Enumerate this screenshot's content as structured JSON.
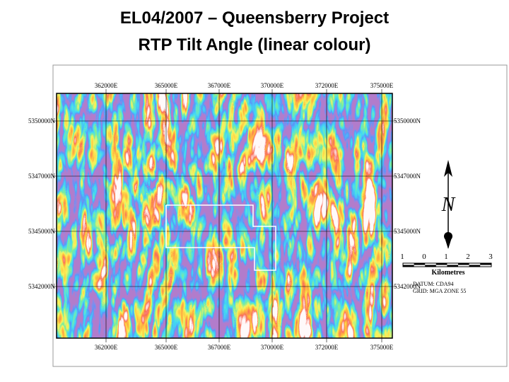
{
  "header": {
    "title_line1": "EL04/2007 – Queensberry Project",
    "title_line2": "RTP Tilt Angle (linear colour)"
  },
  "map": {
    "easting_labels": [
      "362000E",
      "365000E",
      "367000E",
      "370000E",
      "372000E",
      "375000E"
    ],
    "northing_labels": [
      "5350000N",
      "5347000N",
      "5345000N",
      "5342000N"
    ],
    "north_label": "N",
    "scale_ticks": [
      "1",
      "0",
      "1",
      "2",
      "3"
    ],
    "scale_unit": "Kilometres",
    "datum": "DATUM: CDA94",
    "grid": "GRID: MGA ZONE 55"
  }
}
